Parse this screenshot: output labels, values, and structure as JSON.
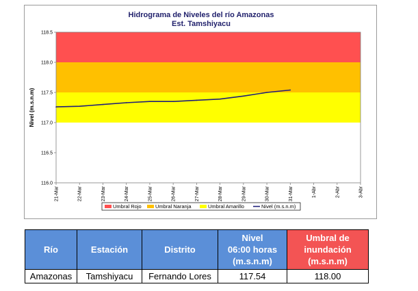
{
  "chart_data": {
    "type": "line",
    "title": "Hidrograma de Niveles del río Amazonas",
    "subtitle": "Est. Tamshiyacu",
    "ylabel": "Nivel (m.s.n.m)",
    "xlabel": "",
    "ylim": [
      116.0,
      118.5
    ],
    "y_ticks": [
      "116.0",
      "116.5",
      "117.0",
      "117.5",
      "118.0",
      "118.5"
    ],
    "x_ticks": [
      "21-Mar",
      "22-Mar",
      "23-Mar",
      "24-Mar",
      "25-Mar",
      "26-Mar",
      "27-Mar",
      "28-Mar",
      "29-Mar",
      "30-Mar",
      "31-Mar",
      "1-Abr",
      "2-Abr",
      "3-Abr"
    ],
    "bands": [
      {
        "name": "Umbral Rojo",
        "from": 118.0,
        "to": 118.5,
        "color": "#ff5050"
      },
      {
        "name": "Umbral Naranja",
        "from": 117.5,
        "to": 118.0,
        "color": "#ffc000"
      },
      {
        "name": "Umbral Amarillo",
        "from": 117.0,
        "to": 117.5,
        "color": "#ffff00"
      }
    ],
    "series": [
      {
        "name": "Nivel (m.s.n.m)",
        "color": "#1f1f7a",
        "x": [
          "21-Mar",
          "22-Mar",
          "23-Mar",
          "24-Mar",
          "25-Mar",
          "26-Mar",
          "27-Mar",
          "28-Mar",
          "29-Mar",
          "30-Mar",
          "31-Mar"
        ],
        "values": [
          117.26,
          117.27,
          117.3,
          117.33,
          117.35,
          117.35,
          117.37,
          117.39,
          117.44,
          117.5,
          117.54
        ]
      }
    ],
    "legend": [
      {
        "label": "Umbral Rojo",
        "kind": "box",
        "color": "#ff5050"
      },
      {
        "label": "Umbral Naranja",
        "kind": "box",
        "color": "#ffc000"
      },
      {
        "label": "Umbral Amarillo",
        "kind": "box",
        "color": "#ffff00"
      },
      {
        "label": "Nivel (m.s.n.m)",
        "kind": "line",
        "color": "#1f1f7a"
      }
    ],
    "legend_position": "bottom",
    "grid": false
  },
  "table": {
    "headers": [
      "Río",
      "Estación",
      "Distrito",
      "Nivel\n06:00 horas\n(m.s.n.m)",
      "Umbral de\ninundación\n(m.s.n.m)"
    ],
    "header_colors": [
      "#5b8fd8",
      "#5b8fd8",
      "#5b8fd8",
      "#5b8fd8",
      "#f35454"
    ],
    "row": [
      "Amazonas",
      "Tamshiyacu",
      "Fernando Lores",
      "117.54",
      "118.00"
    ]
  }
}
